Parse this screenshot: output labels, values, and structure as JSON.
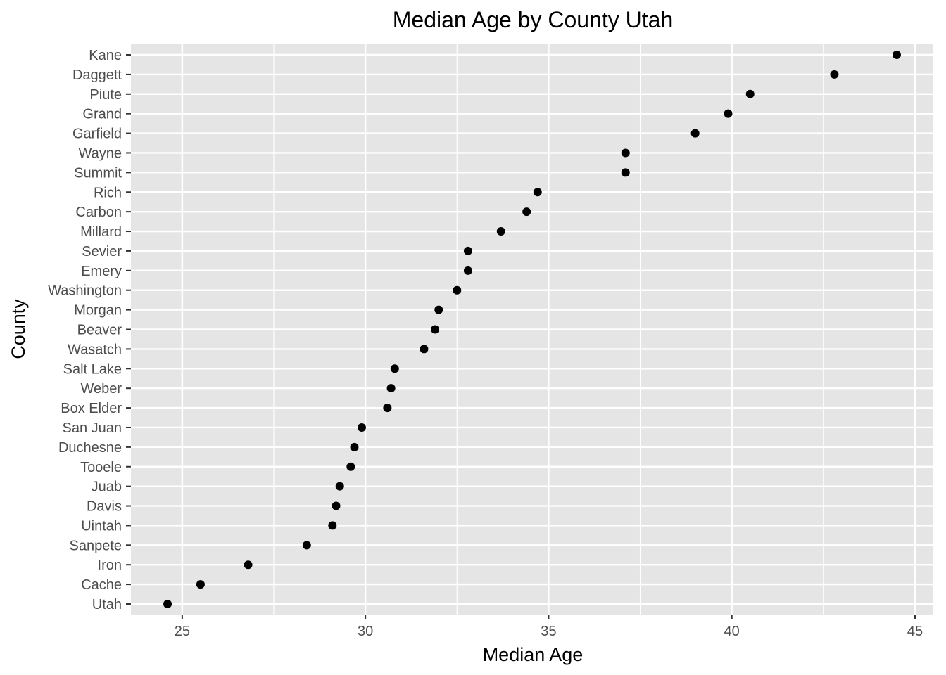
{
  "chart_data": {
    "type": "scatter",
    "title": "Median Age by County Utah",
    "xlabel": "Median Age",
    "ylabel": "County",
    "xlim": [
      23.6,
      45.5
    ],
    "xticks": [
      25,
      30,
      35,
      40,
      45
    ],
    "grid": true,
    "legend": "none",
    "categories": [
      "Utah",
      "Cache",
      "Iron",
      "Sanpete",
      "Uintah",
      "Davis",
      "Juab",
      "Tooele",
      "Duchesne",
      "San Juan",
      "Box Elder",
      "Weber",
      "Salt Lake",
      "Wasatch",
      "Beaver",
      "Morgan",
      "Washington",
      "Emery",
      "Sevier",
      "Millard",
      "Carbon",
      "Rich",
      "Summit",
      "Wayne",
      "Garfield",
      "Grand",
      "Piute",
      "Daggett",
      "Kane"
    ],
    "values": [
      24.6,
      25.5,
      26.8,
      28.4,
      29.1,
      29.2,
      29.3,
      29.6,
      29.7,
      29.9,
      30.6,
      30.7,
      30.8,
      31.6,
      31.9,
      32.0,
      32.5,
      32.8,
      32.8,
      33.7,
      34.4,
      34.7,
      37.1,
      37.1,
      39.0,
      39.9,
      40.5,
      42.8,
      44.5
    ],
    "colors": {
      "panel_background": "#e5e5e5",
      "grid": "#ffffff",
      "point": "#000000",
      "tick_label": "#4d4d4d"
    }
  }
}
